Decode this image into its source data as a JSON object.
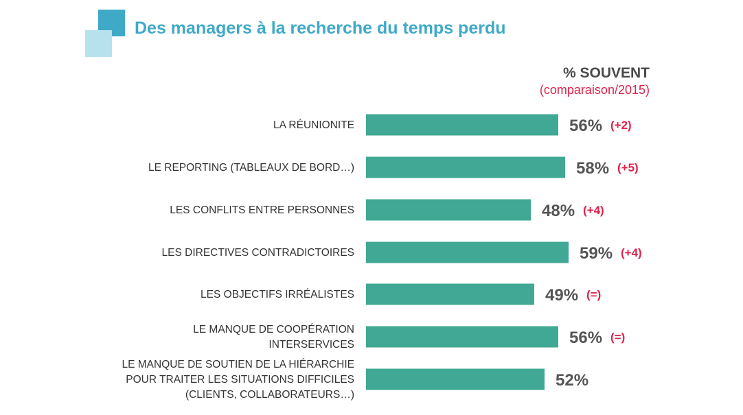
{
  "header": {
    "title": "Des managers à la recherche du temps perdu",
    "column_title": "% SOUVENT",
    "column_subtitle": "(comparaison/2015)"
  },
  "colors": {
    "bar": "#40a894",
    "title": "#3fa9c8",
    "logo_dark": "#3fa9c8",
    "logo_light": "#b7e1ec",
    "change": "#e0224a",
    "value": "#555555"
  },
  "chart_data": {
    "type": "bar",
    "orientation": "horizontal",
    "title": "Des managers à la recherche du temps perdu",
    "xlim": [
      0,
      100
    ],
    "grid": false,
    "categories": [
      [
        "LA RÉUNIONITE"
      ],
      [
        "LE REPORTING (TABLEAUX DE BORD…)"
      ],
      [
        "LES CONFLITS ENTRE PERSONNES"
      ],
      [
        "LES DIRECTIVES CONTRADICTOIRES"
      ],
      [
        "LES OBJECTIFS IRRÉALISTES"
      ],
      [
        "LE MANQUE DE COOPÉRATION",
        "INTERSERVICES"
      ],
      [
        "LE MANQUE DE SOUTIEN DE LA HIÉRARCHIE",
        "POUR TRAITER LES SITUATIONS DIFFICILES",
        "(CLIENTS, COLLABORATEURS…)"
      ]
    ],
    "values": [
      56,
      58,
      48,
      59,
      49,
      56,
      52
    ],
    "value_labels": [
      "56%",
      "58%",
      "48%",
      "59%",
      "49%",
      "56%",
      "52%"
    ],
    "changes": [
      "(+2)",
      "(+5)",
      "(+4)",
      "(+4)",
      "(=)",
      "(=)",
      ""
    ]
  }
}
